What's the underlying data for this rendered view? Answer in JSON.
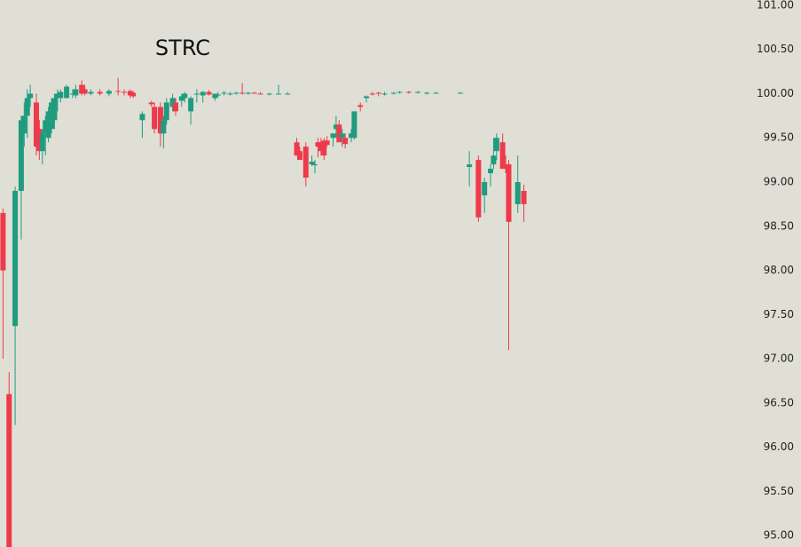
{
  "chart_data": {
    "type": "candlestick",
    "title": "STRC",
    "up_color": "#1f9c7f",
    "down_color": "#ee3a4b",
    "xlim": [
      0,
      249
    ],
    "ylim": [
      94.87,
      101.06
    ],
    "yticks": [
      {
        "value": 95,
        "label": "95.00"
      },
      {
        "value": 95.5,
        "label": "95.50"
      },
      {
        "value": 96,
        "label": "96.00"
      },
      {
        "value": 96.5,
        "label": "96.50"
      },
      {
        "value": 97,
        "label": "97.00"
      },
      {
        "value": 97.5,
        "label": "97.50"
      },
      {
        "value": 98,
        "label": "98.00"
      },
      {
        "value": 98.5,
        "label": "98.50"
      },
      {
        "value": 99,
        "label": "99.00"
      },
      {
        "value": 99.5,
        "label": "99.50"
      },
      {
        "value": 100,
        "label": "100.00"
      },
      {
        "value": 100.5,
        "label": "100.50"
      },
      {
        "value": 101,
        "label": "101.00"
      }
    ],
    "x": [
      1,
      3,
      5,
      7,
      8,
      9,
      10,
      12,
      13,
      14,
      15,
      16,
      17,
      18,
      19,
      20,
      22,
      24,
      25,
      27,
      28,
      30,
      33,
      36,
      39,
      41,
      43,
      44,
      47,
      50,
      51,
      53,
      54,
      55,
      57,
      58,
      60,
      61,
      63,
      65,
      67,
      69,
      71,
      72,
      74,
      76,
      78,
      80,
      82,
      84,
      86,
      89,
      92,
      95,
      98,
      99,
      101,
      103,
      104,
      105,
      106,
      107,
      108,
      110,
      111,
      112,
      113,
      114,
      116,
      117,
      119,
      121,
      123,
      125,
      127,
      130,
      132,
      135,
      138,
      141,
      144,
      152,
      155,
      158,
      160,
      162,
      163,
      164,
      166,
      167,
      168,
      171,
      173
    ],
    "open": [
      98.65,
      96.6,
      97.37,
      98.9,
      99.55,
      99.75,
      99.95,
      99.9,
      99.6,
      99.35,
      99.55,
      99.5,
      99.6,
      99.7,
      99.95,
      99.95,
      99.95,
      100.0,
      99.98,
      100.1,
      100.05,
      100.0,
      100.02,
      100.0,
      100.03,
      100.02,
      100.03,
      100.01,
      99.7,
      99.9,
      99.85,
      99.85,
      99.55,
      99.7,
      99.85,
      99.9,
      99.92,
      99.95,
      99.8,
      100.0,
      99.98,
      100.02,
      99.95,
      99.98,
      100.0,
      99.99,
      100.0,
      100.01,
      100.0,
      100.01,
      100.0,
      99.99,
      100.0,
      100.0,
      99.45,
      99.35,
      99.4,
      99.2,
      99.2,
      99.45,
      99.45,
      99.47,
      99.47,
      99.5,
      99.6,
      99.65,
      99.5,
      99.5,
      99.5,
      99.5,
      99.87,
      99.95,
      100.0,
      100.01,
      100.0,
      100.0,
      100.01,
      100.02,
      100.01,
      100.0,
      100.01,
      100.01,
      99.17,
      99.25,
      98.85,
      99.1,
      99.2,
      99.35,
      99.45,
      99.2,
      99.2,
      98.75,
      98.9
    ],
    "high": [
      98.7,
      96.85,
      98.95,
      99.75,
      99.9,
      100.05,
      100.1,
      100.0,
      99.7,
      99.6,
      99.75,
      99.85,
      99.95,
      100.0,
      100.05,
      100.05,
      100.1,
      100.05,
      100.1,
      100.15,
      100.1,
      100.05,
      100.05,
      100.05,
      100.18,
      100.05,
      100.05,
      100.03,
      99.8,
      99.92,
      99.9,
      99.9,
      99.75,
      99.95,
      100.0,
      99.95,
      100.0,
      100.02,
      99.97,
      100.05,
      100.03,
      100.04,
      100.0,
      100.02,
      100.03,
      100.02,
      100.02,
      100.12,
      100.02,
      100.02,
      100.02,
      100.01,
      100.1,
      100.02,
      99.5,
      99.4,
      99.45,
      99.3,
      99.25,
      99.5,
      99.5,
      99.5,
      99.52,
      99.55,
      99.75,
      99.7,
      99.6,
      99.55,
      99.6,
      99.8,
      99.9,
      99.98,
      100.02,
      100.02,
      100.02,
      100.02,
      100.03,
      100.03,
      100.03,
      100.02,
      100.02,
      100.02,
      99.35,
      99.3,
      99.05,
      99.2,
      99.5,
      99.55,
      99.55,
      99.3,
      99.25,
      99.3,
      98.97
    ],
    "low": [
      97.0,
      94.87,
      96.25,
      98.35,
      99.4,
      99.5,
      99.85,
      99.3,
      99.25,
      99.2,
      99.3,
      99.45,
      99.55,
      99.6,
      99.8,
      99.9,
      99.95,
      99.95,
      99.95,
      99.98,
      99.98,
      99.98,
      99.98,
      99.97,
      99.98,
      99.98,
      99.95,
      99.95,
      99.5,
      99.85,
      99.55,
      99.4,
      99.38,
      99.65,
      99.8,
      99.75,
      99.85,
      99.9,
      99.65,
      99.9,
      99.9,
      99.98,
      99.92,
      99.96,
      99.98,
      99.98,
      99.99,
      99.99,
      99.99,
      100.0,
      99.99,
      99.98,
      99.99,
      99.99,
      99.3,
      99.25,
      98.95,
      99.18,
      99.1,
      99.28,
      99.3,
      99.25,
      99.4,
      99.4,
      99.5,
      99.45,
      99.4,
      99.38,
      99.45,
      99.48,
      99.8,
      99.9,
      99.98,
      99.97,
      99.98,
      99.99,
      100.0,
      100.0,
      100.0,
      99.99,
      100.0,
      100.0,
      98.95,
      98.55,
      98.65,
      98.95,
      99.15,
      99.25,
      99.15,
      99.1,
      97.1,
      98.65,
      98.55
    ],
    "close": [
      98.0,
      94.87,
      98.9,
      99.7,
      99.75,
      99.95,
      100.0,
      99.4,
      99.35,
      99.55,
      99.7,
      99.8,
      99.9,
      99.95,
      100.0,
      100.02,
      100.08,
      100.0,
      100.05,
      100.0,
      100.0,
      100.02,
      100.0,
      100.03,
      100.02,
      100.01,
      99.98,
      99.97,
      99.77,
      99.88,
      99.6,
      99.55,
      99.7,
      99.9,
      99.95,
      99.8,
      99.97,
      100.0,
      99.95,
      100.0,
      100.02,
      99.99,
      100.0,
      99.99,
      100.01,
      100.0,
      100.01,
      100.0,
      100.01,
      100.0,
      99.99,
      100.0,
      100.0,
      100.0,
      99.3,
      99.25,
      99.05,
      99.23,
      99.2,
      99.4,
      99.35,
      99.3,
      99.42,
      99.55,
      99.65,
      99.45,
      99.55,
      99.43,
      99.55,
      99.8,
      99.85,
      99.97,
      99.99,
      100.0,
      100.0,
      100.01,
      100.02,
      100.01,
      100.02,
      100.01,
      100.01,
      100.01,
      99.2,
      98.6,
      99.0,
      99.15,
      99.3,
      99.5,
      99.15,
      99.15,
      98.55,
      99.0,
      98.75
    ]
  }
}
